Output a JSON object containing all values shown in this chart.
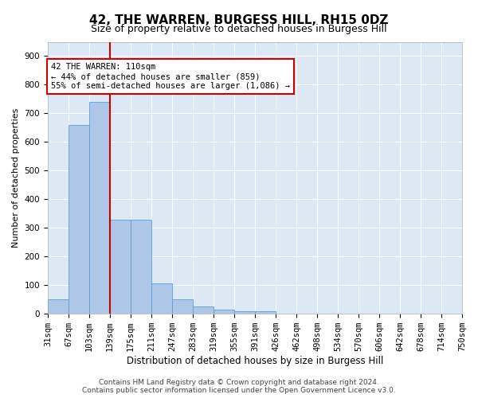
{
  "title": "42, THE WARREN, BURGESS HILL, RH15 0DZ",
  "subtitle": "Size of property relative to detached houses in Burgess Hill",
  "xlabel": "Distribution of detached houses by size in Burgess Hill",
  "ylabel": "Number of detached properties",
  "bar_values": [
    50,
    660,
    740,
    330,
    330,
    105,
    50,
    25,
    15,
    10,
    8,
    0,
    0,
    0,
    0,
    0,
    0,
    0,
    0,
    0
  ],
  "bar_labels": [
    "31sqm",
    "67sqm",
    "103sqm",
    "139sqm",
    "175sqm",
    "211sqm",
    "247sqm",
    "283sqm",
    "319sqm",
    "355sqm",
    "391sqm",
    "426sqm",
    "462sqm",
    "498sqm",
    "534sqm",
    "570sqm",
    "606sqm",
    "642sqm",
    "678sqm",
    "714sqm",
    "750sqm"
  ],
  "bar_color": "#aec6e8",
  "bar_edge_color": "#5a9fd4",
  "vline_x_index": 2,
  "vline_color": "#cc0000",
  "annotation_text": "42 THE WARREN: 110sqm\n← 44% of detached houses are smaller (859)\n55% of semi-detached houses are larger (1,086) →",
  "annotation_box_color": "#ffffff",
  "annotation_box_edge": "#cc0000",
  "ylim": [
    0,
    950
  ],
  "yticks": [
    0,
    100,
    200,
    300,
    400,
    500,
    600,
    700,
    800,
    900
  ],
  "background_color": "#dce9f5",
  "footer_line1": "Contains HM Land Registry data © Crown copyright and database right 2024.",
  "footer_line2": "Contains public sector information licensed under the Open Government Licence v3.0.",
  "title_fontsize": 11,
  "subtitle_fontsize": 9,
  "xlabel_fontsize": 8.5,
  "ylabel_fontsize": 8,
  "tick_fontsize": 7.5,
  "annotation_fontsize": 7.5,
  "footer_fontsize": 6.5
}
